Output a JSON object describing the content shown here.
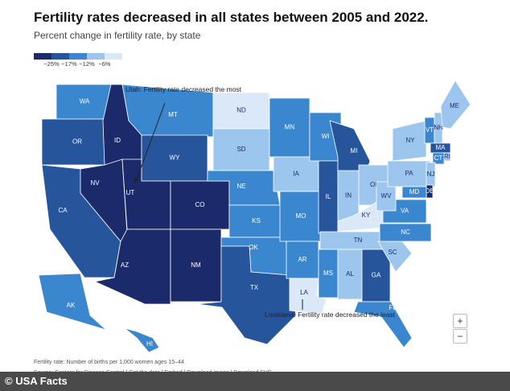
{
  "header": {
    "title": "Fertility rates decreased in all states between 2005 and 2022.",
    "subtitle": "Percent change in fertility rate, by state"
  },
  "legend": {
    "colors": [
      "#1b2a6b",
      "#27559c",
      "#3a86cf",
      "#9dc6ee",
      "#dbe8f8"
    ],
    "labels": [
      "−25%",
      "−17%",
      "−12%",
      "−6%"
    ]
  },
  "states": [
    {
      "label": "WA",
      "color": "#3a86cf"
    },
    {
      "label": "OR",
      "color": "#27559c"
    },
    {
      "label": "CA",
      "color": "#27559c"
    },
    {
      "label": "ID",
      "color": "#1b2a6b"
    },
    {
      "label": "NV",
      "color": "#1b2a6b"
    },
    {
      "label": "MT",
      "color": "#3a86cf"
    },
    {
      "label": "WY",
      "color": "#27559c"
    },
    {
      "label": "UT",
      "color": "#1b2a6b"
    },
    {
      "label": "AZ",
      "color": "#1b2a6b"
    },
    {
      "label": "CO",
      "color": "#1b2a6b"
    },
    {
      "label": "NM",
      "color": "#1b2a6b"
    },
    {
      "label": "ND",
      "color": "#dbe8f8"
    },
    {
      "label": "SD",
      "color": "#9dc6ee"
    },
    {
      "label": "NE",
      "color": "#3a86cf"
    },
    {
      "label": "KS",
      "color": "#3a86cf"
    },
    {
      "label": "OK",
      "color": "#3a86cf"
    },
    {
      "label": "TX",
      "color": "#27559c"
    },
    {
      "label": "MN",
      "color": "#3a86cf"
    },
    {
      "label": "IA",
      "color": "#9dc6ee"
    },
    {
      "label": "MO",
      "color": "#3a86cf"
    },
    {
      "label": "AR",
      "color": "#3a86cf"
    },
    {
      "label": "LA",
      "color": "#dbe8f8"
    },
    {
      "label": "WI",
      "color": "#3a86cf"
    },
    {
      "label": "IL",
      "color": "#27559c"
    },
    {
      "label": "MI",
      "color": "#27559c"
    },
    {
      "label": "IN",
      "color": "#9dc6ee"
    },
    {
      "label": "OH",
      "color": "#9dc6ee"
    },
    {
      "label": "KY",
      "color": "#dbe8f8"
    },
    {
      "label": "TN",
      "color": "#9dc6ee"
    },
    {
      "label": "MS",
      "color": "#3a86cf"
    },
    {
      "label": "AL",
      "color": "#9dc6ee"
    },
    {
      "label": "GA",
      "color": "#27559c"
    },
    {
      "label": "FL",
      "color": "#3a86cf"
    },
    {
      "label": "SC",
      "color": "#9dc6ee"
    },
    {
      "label": "NC",
      "color": "#3a86cf"
    },
    {
      "label": "VA",
      "color": "#3a86cf"
    },
    {
      "label": "WV",
      "color": "#9dc6ee"
    },
    {
      "label": "PA",
      "color": "#9dc6ee"
    },
    {
      "label": "NY",
      "color": "#9dc6ee"
    },
    {
      "label": "VT",
      "color": "#3a86cf"
    },
    {
      "label": "NH",
      "color": "#9dc6ee"
    },
    {
      "label": "ME",
      "color": "#9dc6ee"
    },
    {
      "label": "MA",
      "color": "#27559c"
    },
    {
      "label": "RI",
      "color": "#9dc6ee"
    },
    {
      "label": "CT",
      "color": "#3a86cf"
    },
    {
      "label": "NJ",
      "color": "#9dc6ee"
    },
    {
      "label": "DE",
      "color": "#1b2a6b"
    },
    {
      "label": "MD",
      "color": "#3a86cf"
    },
    {
      "label": "AK",
      "color": "#3a86cf"
    },
    {
      "label": "HI",
      "color": "#3a86cf"
    }
  ],
  "annotations": {
    "utah": "Utah: Fertility rate decreased the most",
    "louisiana": "Louisiana: Fertility rate decreased the least"
  },
  "zoom": {
    "in": "+",
    "out": "−"
  },
  "footer": {
    "note": "Fertility rate: Number of births per 1,000 women ages 15–44",
    "source_label": "Source:",
    "links": [
      "Centers for Disease Control",
      "Get the data",
      "Embed",
      "Download image",
      "Download SVG"
    ],
    "separator": "|"
  },
  "brand": {
    "copyright": "©",
    "name": "USA Facts"
  }
}
